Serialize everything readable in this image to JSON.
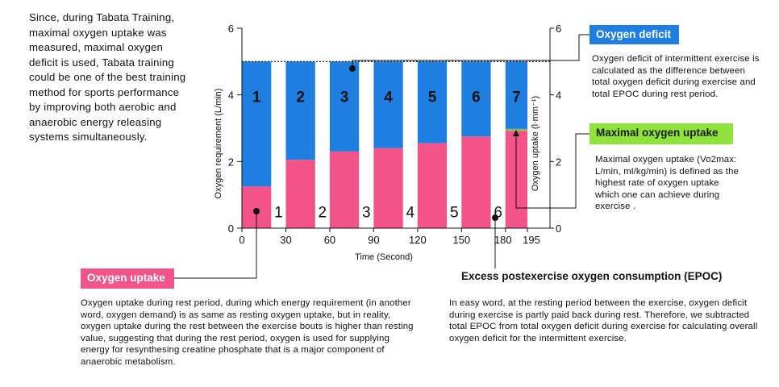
{
  "intro_text": "Since, during Tabata Training, maximal oxygen uptake was measured, maximal oxygen deficit is used, Tabata training could be one of the best training method for sports performance by improving both aerobic and anaerobic energy releasing systems simultaneously.",
  "callouts": {
    "oxygen_deficit": {
      "title": "Oxygen deficit",
      "body": "Oxygen deficit of intermittent exercise is calculated as the difference between total oxygen deficit during exercise and total EPOC during rest period."
    },
    "maximal_uptake": {
      "title": "Maximal oxygen uptake",
      "body": "Maximal oxygen uptake (Vo2max: L/min, ml/kg/min) is defined as the highest rate of oxygen uptake which one can achieve during exercise ."
    },
    "oxygen_uptake": {
      "title": "Oxygen uptake",
      "body": "Oxygen uptake during rest period, during which energy requirement (in another word, oxygen demand) is as same as resting oxygen uptake, but in reality, oxygen uptake during the rest between the exercise bouts is higher than resting value, suggesting that during the rest period, oxygen is used for supplying energy for resynthesing creatine phosphate that is a major component of anaerobic metabolism."
    },
    "epoc": {
      "title": "Excess postexercise oxygen consumption (EPOC)",
      "body": "In easy word, at the resting period between the exercise, oxygen deficit during exercise is partly paid back during rest. Therefore, we subtracted total EPOC from total oxygen deficit during exercise for calculating overall oxygen deficit for the intermittent exercise."
    }
  },
  "colors": {
    "deficit": "#1f7fe0",
    "uptake": "#f25388",
    "vo2max": "#90e33a",
    "text": "#111111"
  },
  "chart_data": {
    "type": "bar",
    "xlabel": "Time (Second)",
    "ylabel_left": "Oxygen  requirement (L/min)",
    "ylabel_right": "Oxygen uptake (l·mm⁻¹)",
    "xlim": [
      0,
      195
    ],
    "ylim": [
      0,
      6
    ],
    "x_ticks": [
      "0",
      "30",
      "60",
      "90",
      "120",
      "150",
      "180",
      "195"
    ],
    "x_tick_values": [
      0,
      30,
      60,
      90,
      120,
      150,
      180,
      195
    ],
    "y_ticks_left": [
      "0",
      "2",
      "4",
      "6"
    ],
    "y_ticks_right": [
      "0",
      "2",
      "4",
      "6"
    ],
    "y_tick_values": [
      0,
      2,
      4,
      6
    ],
    "oxygen_requirement": 5.0,
    "maximal_oxygen_uptake": 2.95,
    "exercise_bouts": [
      {
        "label": "1",
        "start": 0,
        "end": 20,
        "uptake": 1.25
      },
      {
        "label": "2",
        "start": 30,
        "end": 50,
        "uptake": 2.05
      },
      {
        "label": "3",
        "start": 60,
        "end": 80,
        "uptake": 2.3
      },
      {
        "label": "4",
        "start": 90,
        "end": 110,
        "uptake": 2.4
      },
      {
        "label": "5",
        "start": 120,
        "end": 140,
        "uptake": 2.55
      },
      {
        "label": "6",
        "start": 150,
        "end": 170,
        "uptake": 2.75
      },
      {
        "label": "7",
        "start": 180,
        "end": 195,
        "uptake": 2.95
      }
    ],
    "rest_periods": [
      {
        "label": "1",
        "start": 20,
        "end": 30
      },
      {
        "label": "2",
        "start": 50,
        "end": 60
      },
      {
        "label": "3",
        "start": 80,
        "end": 90
      },
      {
        "label": "4",
        "start": 110,
        "end": 120
      },
      {
        "label": "5",
        "start": 140,
        "end": 150
      },
      {
        "label": "6",
        "start": 170,
        "end": 180
      }
    ]
  }
}
